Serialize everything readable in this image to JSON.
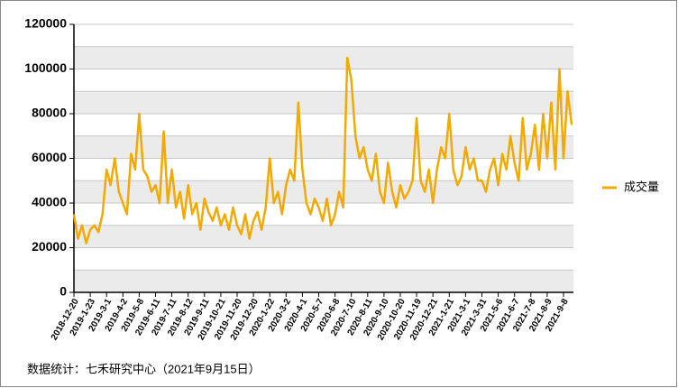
{
  "chart_data": {
    "type": "line",
    "categories": [
      "2018-12-20",
      null,
      null,
      null,
      "2019-1-23",
      null,
      null,
      null,
      "2019-3-1",
      null,
      null,
      null,
      "2019-4-2",
      null,
      null,
      null,
      "2019-5-8",
      null,
      null,
      null,
      "2019-6-11",
      null,
      null,
      null,
      "2019-7-11",
      null,
      null,
      null,
      "2019-8-12",
      null,
      null,
      null,
      "2019-9-11",
      null,
      null,
      null,
      "2019-10-21",
      null,
      null,
      null,
      "2019-11-20",
      null,
      null,
      null,
      "2019-12-20",
      null,
      null,
      null,
      "2020-1-22",
      null,
      null,
      null,
      "2020-3-2",
      null,
      null,
      null,
      "2020-4-1",
      null,
      null,
      null,
      "2020-5-7",
      null,
      null,
      null,
      "2020-6-8",
      null,
      null,
      null,
      "2020-7-10",
      null,
      null,
      null,
      "2020-8-11",
      null,
      null,
      null,
      "2020-9-10",
      null,
      null,
      null,
      "2020-10-20",
      null,
      null,
      null,
      "2020-11-19",
      null,
      null,
      null,
      "2020-12-21",
      null,
      null,
      null,
      "2021-1-21",
      null,
      null,
      null,
      "2021-3-1",
      null,
      null,
      null,
      "2021-3-31",
      null,
      null,
      null,
      "2021-5-6",
      null,
      null,
      null,
      "2021-6-7",
      null,
      null,
      null,
      "2021-7-8",
      null,
      null,
      null,
      "2021-8-9",
      null,
      null,
      null,
      "2021-9-8",
      null,
      null
    ],
    "series": [
      {
        "name": "成交量",
        "color": "#f2a900",
        "values": [
          35000,
          24000,
          30000,
          22000,
          28000,
          30000,
          27000,
          35000,
          55000,
          48000,
          60000,
          45000,
          40000,
          35000,
          62000,
          55000,
          80000,
          55000,
          52000,
          45000,
          48000,
          40000,
          72000,
          40000,
          55000,
          38000,
          45000,
          33000,
          48000,
          35000,
          40000,
          28000,
          42000,
          36000,
          32000,
          38000,
          30000,
          35000,
          28000,
          38000,
          30000,
          26000,
          35000,
          24000,
          32000,
          36000,
          28000,
          38000,
          60000,
          40000,
          45000,
          35000,
          48000,
          55000,
          50000,
          85000,
          55000,
          40000,
          35000,
          42000,
          38000,
          32000,
          42000,
          30000,
          35000,
          45000,
          38000,
          105000,
          95000,
          70000,
          60000,
          65000,
          55000,
          50000,
          62000,
          45000,
          40000,
          58000,
          45000,
          38000,
          48000,
          42000,
          45000,
          50000,
          78000,
          50000,
          45000,
          55000,
          40000,
          55000,
          65000,
          60000,
          80000,
          55000,
          48000,
          52000,
          65000,
          55000,
          60000,
          50000,
          50000,
          45000,
          55000,
          60000,
          48000,
          62000,
          55000,
          70000,
          58000,
          50000,
          78000,
          55000,
          62000,
          75000,
          55000,
          80000,
          60000,
          85000,
          55000,
          100000,
          60000,
          90000,
          75000
        ]
      }
    ],
    "ylim": [
      0,
      120000
    ],
    "yticks": [
      0,
      20000,
      40000,
      60000,
      80000,
      100000,
      120000
    ],
    "grid": true,
    "legend": "right",
    "source": "数据统计：七禾研究中心（2021年9月15日）"
  }
}
